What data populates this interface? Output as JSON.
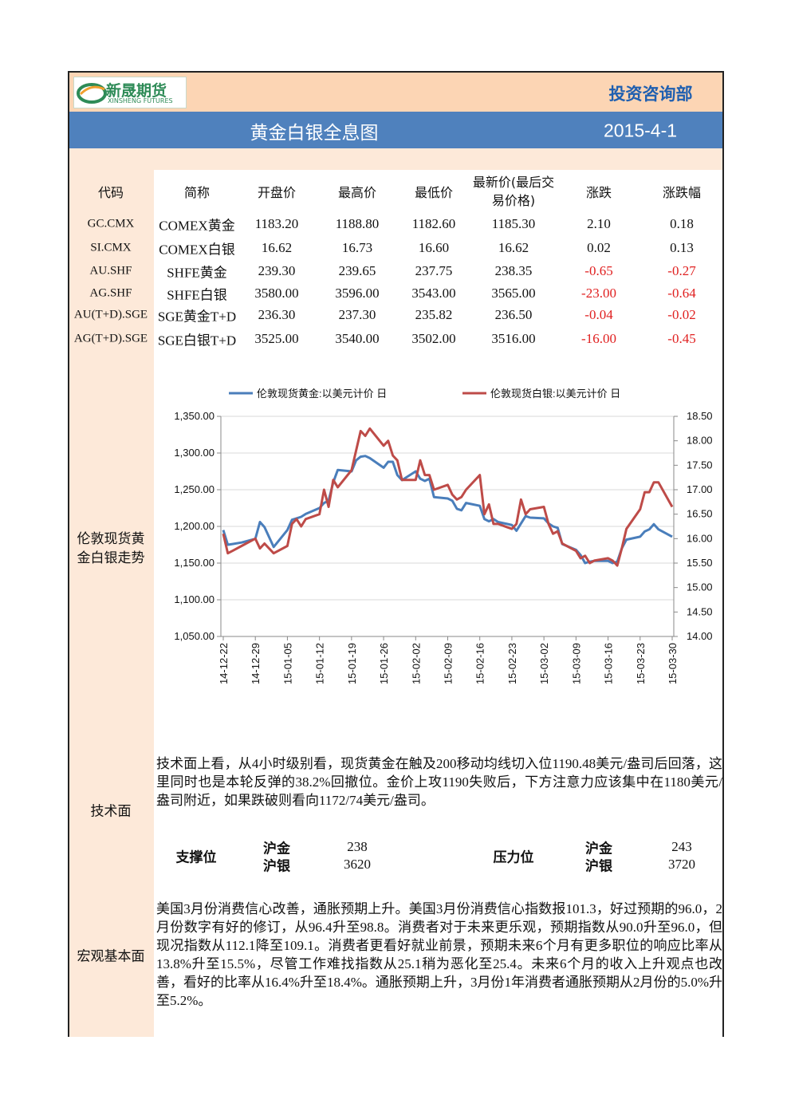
{
  "logo": {
    "name": "新晟期货",
    "subtitle": "XINSHENG FUTURES"
  },
  "header": {
    "department": "投资咨询部",
    "title": "黄金白银全息图",
    "date": "2015-4-1"
  },
  "quotes": {
    "columns": [
      "代码",
      "简称",
      "开盘价",
      "最高价",
      "最低价",
      "最新价(最后交易价格)",
      "涨跌",
      "涨跌幅"
    ],
    "rows": [
      [
        "GC.CMX",
        "COMEX黄金",
        "1183.20",
        "1188.80",
        "1182.60",
        "1185.30",
        "2.10",
        "0.18"
      ],
      [
        "SI.CMX",
        "COMEX白银",
        "16.62",
        "16.73",
        "16.60",
        "16.62",
        "0.02",
        "0.13"
      ],
      [
        "AU.SHF",
        "SHFE黄金",
        "239.30",
        "239.65",
        "237.75",
        "238.35",
        "-0.65",
        "-0.27"
      ],
      [
        "AG.SHF",
        "SHFE白银",
        "3580.00",
        "3596.00",
        "3543.00",
        "3565.00",
        "-23.00",
        "-0.64"
      ],
      [
        "AU(T+D).SGE",
        "SGE黄金T+D",
        "236.30",
        "237.30",
        "235.82",
        "236.50",
        "-0.04",
        "-0.02"
      ],
      [
        "AG(T+D).SGE",
        "SGE白银T+D",
        "3525.00",
        "3540.00",
        "3502.00",
        "3516.00",
        "-16.00",
        "-0.45"
      ]
    ]
  },
  "chart_label": "伦敦现货黄金白银走势",
  "chart_data": {
    "type": "line",
    "x": [
      "14-12-22",
      "14-12-23",
      "14-12-24",
      "14-12-26",
      "14-12-29",
      "14-12-30",
      "14-12-31",
      "15-01-02",
      "15-01-05",
      "15-01-06",
      "15-01-07",
      "15-01-08",
      "15-01-09",
      "15-01-12",
      "15-01-13",
      "15-01-14",
      "15-01-15",
      "15-01-16",
      "15-01-19",
      "15-01-20",
      "15-01-21",
      "15-01-22",
      "15-01-23",
      "15-01-26",
      "15-01-27",
      "15-01-28",
      "15-01-29",
      "15-01-30",
      "15-02-02",
      "15-02-03",
      "15-02-04",
      "15-02-05",
      "15-02-06",
      "15-02-09",
      "15-02-10",
      "15-02-11",
      "15-02-12",
      "15-02-13",
      "15-02-16",
      "15-02-17",
      "15-02-18",
      "15-02-19",
      "15-02-20",
      "15-02-23",
      "15-02-24",
      "15-02-25",
      "15-02-26",
      "15-02-27",
      "15-03-02",
      "15-03-03",
      "15-03-04",
      "15-03-05",
      "15-03-06",
      "15-03-09",
      "15-03-10",
      "15-03-11",
      "15-03-12",
      "15-03-13",
      "15-03-16",
      "15-03-17",
      "15-03-18",
      "15-03-19",
      "15-03-20",
      "15-03-23",
      "15-03-24",
      "15-03-25",
      "15-03-26",
      "15-03-27",
      "15-03-30"
    ],
    "series": [
      {
        "name": "伦敦现货黄金:以美元计价 日",
        "color": "#4a7ebb",
        "values": [
          1195,
          1175,
          1176,
          1178,
          1183,
          1206,
          1199,
          1172,
          1195,
          1209,
          1211,
          1213,
          1217,
          1225,
          1232,
          1235,
          1260,
          1277,
          1275,
          1290,
          1295,
          1296,
          1293,
          1280,
          1288,
          1288,
          1270,
          1263,
          1275,
          1265,
          1262,
          1265,
          1240,
          1238,
          1235,
          1224,
          1222,
          1232,
          1228,
          1210,
          1207,
          1210,
          1206,
          1202,
          1194,
          1204,
          1214,
          1212,
          1211,
          1204,
          1200,
          1198,
          1176,
          1168,
          1161,
          1150,
          1152,
          1153,
          1153,
          1150,
          1152,
          1170,
          1182,
          1186,
          1193,
          1196,
          1203,
          1196,
          1186
        ]
      },
      {
        "name": "伦敦现货白银:以美元计价 日",
        "color": "#be4b48",
        "axis": "y2",
        "values": [
          16.1,
          15.7,
          15.75,
          15.85,
          16.0,
          15.8,
          15.9,
          15.7,
          15.85,
          16.3,
          16.4,
          16.25,
          16.4,
          16.5,
          17.0,
          16.65,
          17.2,
          17.05,
          17.4,
          17.8,
          18.2,
          18.1,
          18.25,
          17.9,
          18.0,
          17.7,
          17.6,
          17.2,
          17.2,
          17.6,
          17.3,
          17.3,
          17.0,
          17.1,
          16.9,
          16.8,
          16.85,
          17.0,
          17.3,
          16.5,
          16.7,
          16.3,
          16.3,
          16.2,
          16.3,
          16.8,
          16.5,
          16.6,
          16.65,
          16.3,
          16.1,
          16.15,
          15.9,
          15.75,
          15.6,
          15.65,
          15.5,
          15.55,
          15.6,
          15.55,
          15.45,
          15.8,
          16.2,
          16.6,
          16.95,
          16.95,
          17.15,
          17.15,
          16.65
        ]
      }
    ],
    "xticks": [
      "14-12-22",
      "14-12-29",
      "15-01-05",
      "15-01-12",
      "15-01-19",
      "15-01-26",
      "15-02-02",
      "15-02-09",
      "15-02-16",
      "15-02-23",
      "15-03-02",
      "15-03-09",
      "15-03-16",
      "15-03-23",
      "15-03-30"
    ],
    "ylim": [
      1050,
      1350
    ],
    "yticks": [
      {
        "value": 1050,
        "label": "1,050.00"
      },
      {
        "value": 1100,
        "label": "1,100.00"
      },
      {
        "value": 1150,
        "label": "1,150.00"
      },
      {
        "value": 1200,
        "label": "1,200.00"
      },
      {
        "value": 1250,
        "label": "1,250.00"
      },
      {
        "value": 1300,
        "label": "1,300.00"
      },
      {
        "value": 1350,
        "label": "1,350.00"
      }
    ],
    "y2lim": [
      14,
      18.5
    ],
    "y2ticks": [
      {
        "value": 14,
        "label": "14.00"
      },
      {
        "value": 14.5,
        "label": "14.50"
      },
      {
        "value": 15,
        "label": "15.00"
      },
      {
        "value": 15.5,
        "label": "15.50"
      },
      {
        "value": 16,
        "label": "16.00"
      },
      {
        "value": 16.5,
        "label": "16.50"
      },
      {
        "value": 17,
        "label": "17.00"
      },
      {
        "value": 17.5,
        "label": "17.50"
      },
      {
        "value": 18,
        "label": "18.00"
      },
      {
        "value": 18.5,
        "label": "18.50"
      }
    ],
    "grid": true,
    "legend": "top"
  },
  "technical": {
    "label": "技术面",
    "text": "技术面上看，从4小时级别看，现货黄金在触及200移动均线切入位1190.48美元/盎司后回落，这里同时也是本轮反弹的38.2%回撤位。金价上攻1190失败后，下方注意力应该集中在1180美元/盎司附近，如果跌破则看向1172/74美元/盎司。",
    "support": {
      "label": "支撑位",
      "items": [
        {
          "name": "沪金",
          "value": "238"
        },
        {
          "name": "沪银",
          "value": "3620"
        }
      ]
    },
    "resistance": {
      "label": "压力位",
      "items": [
        {
          "name": "沪金",
          "value": "243"
        },
        {
          "name": "沪银",
          "value": "3720"
        }
      ]
    }
  },
  "macro": {
    "label": "宏观基本面",
    "text": "美国3月份消费信心改善，通胀预期上升。美国3月份消费信心指数报101.3，好过预期的96.0，2月份数字有好的修订，从96.4升至98.8。消费者对于未来更乐观，预期指数从90.0升至96.0，但现况指数从112.1降至109.1。消费者更看好就业前景，预期未来6个月有更多职位的响应比率从13.8%升至15.5%，尽管工作难找指数从25.1稍为恶化至25.4。未来6个月的收入上升观点也改善，看好的比率从16.4%升至18.4%。通胀预期上升，3月份1年消费者通胀预期从2月份的5.0%升至5.2%。"
  }
}
